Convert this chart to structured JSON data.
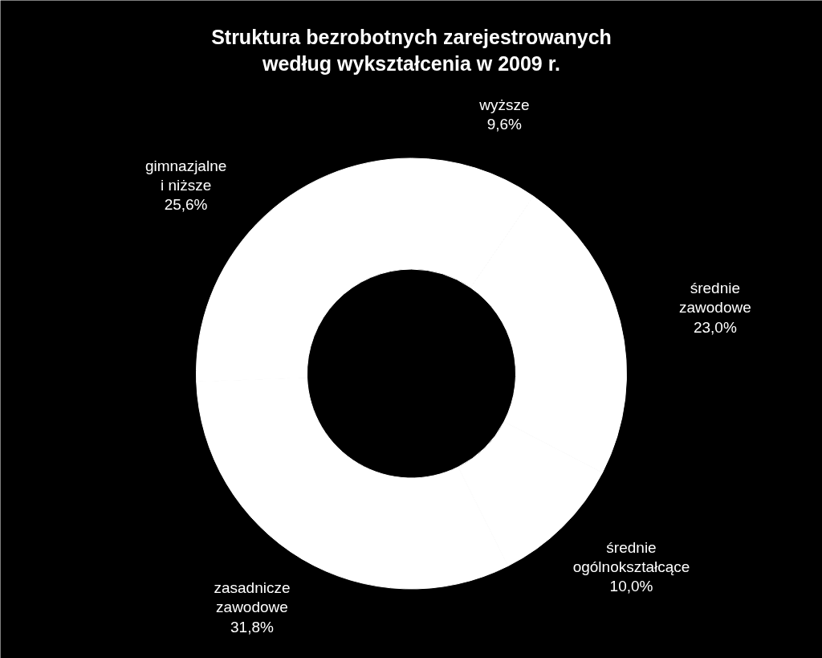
{
  "chart_data": {
    "type": "donut",
    "title": "Struktura bezrobotnych zarejestrowanych według wykształcenia w 2009 r.",
    "categories": [
      "wyższe",
      "średnie zawodowe",
      "średnie ogólnokształcące",
      "zasadnicze zawodowe",
      "gimnazjalne i niższe"
    ],
    "values": [
      9.6,
      23.0,
      10.0,
      31.8,
      25.6
    ],
    "value_labels": [
      "9,6%",
      "23,0%",
      "10,0%",
      "31,8%",
      "25,6%"
    ],
    "colors": [
      "#ffffff",
      "#ffffff",
      "#ffffff",
      "#ffffff",
      "#ffffff"
    ]
  }
}
